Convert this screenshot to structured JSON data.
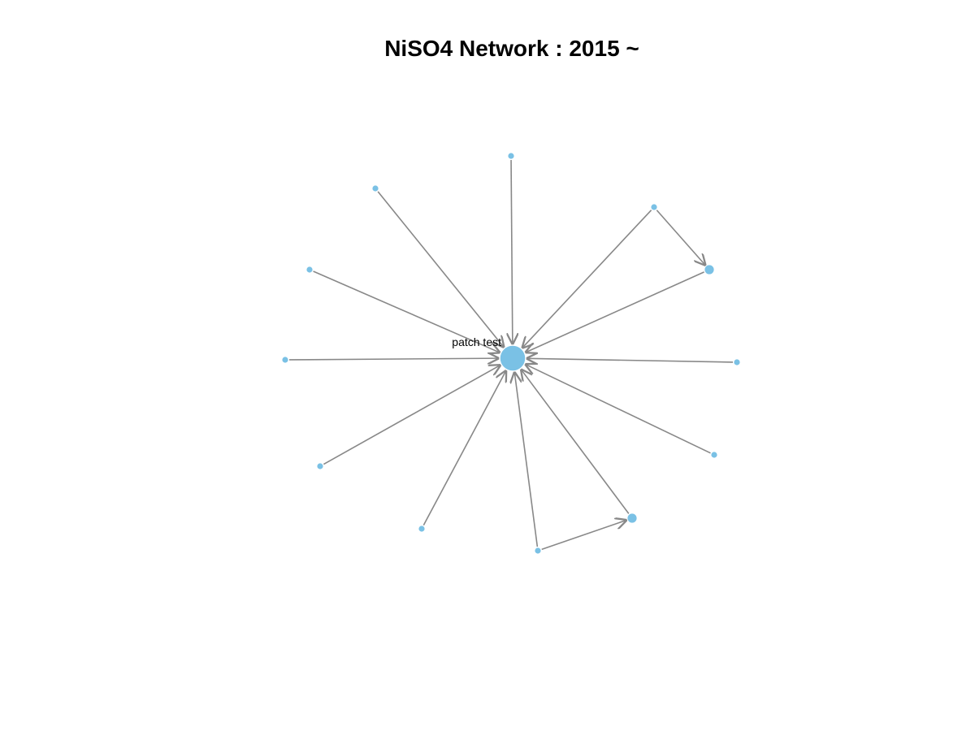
{
  "title": "NiSO4 Network : 2015 ~",
  "colors": {
    "node": "#7ac1e5",
    "edge": "#888888",
    "background": "#ffffff"
  },
  "nodes": [
    {
      "id": "patch test",
      "label": "patch test",
      "size": "large"
    },
    {
      "id": "n1",
      "label": "",
      "size": "small"
    },
    {
      "id": "n2",
      "label": "",
      "size": "small"
    },
    {
      "id": "n3",
      "label": "",
      "size": "small"
    },
    {
      "id": "n4",
      "label": "",
      "size": "medium"
    },
    {
      "id": "n5",
      "label": "",
      "size": "small"
    },
    {
      "id": "n6",
      "label": "",
      "size": "small"
    },
    {
      "id": "n7",
      "label": "",
      "size": "small"
    },
    {
      "id": "n8",
      "label": "",
      "size": "small"
    },
    {
      "id": "n9",
      "label": "",
      "size": "small"
    },
    {
      "id": "n10",
      "label": "",
      "size": "small"
    },
    {
      "id": "n11",
      "label": "",
      "size": "small"
    },
    {
      "id": "n12",
      "label": "",
      "size": "medium"
    },
    {
      "id": "n13",
      "label": "",
      "size": "small"
    }
  ],
  "edges": [
    {
      "from": "n1",
      "to": "patch test"
    },
    {
      "from": "n2",
      "to": "patch test"
    },
    {
      "from": "n3",
      "to": "patch test"
    },
    {
      "from": "n4",
      "to": "patch test"
    },
    {
      "from": "n3",
      "to": "n4"
    },
    {
      "from": "n5",
      "to": "patch test"
    },
    {
      "from": "n6",
      "to": "patch test"
    },
    {
      "from": "n7",
      "to": "patch test"
    },
    {
      "from": "n8",
      "to": "patch test"
    },
    {
      "from": "n9",
      "to": "patch test"
    },
    {
      "from": "n10",
      "to": "patch test"
    },
    {
      "from": "n11",
      "to": "patch test"
    },
    {
      "from": "n12",
      "to": "patch test"
    },
    {
      "from": "n13",
      "to": "patch test"
    },
    {
      "from": "n11",
      "to": "n12"
    }
  ]
}
